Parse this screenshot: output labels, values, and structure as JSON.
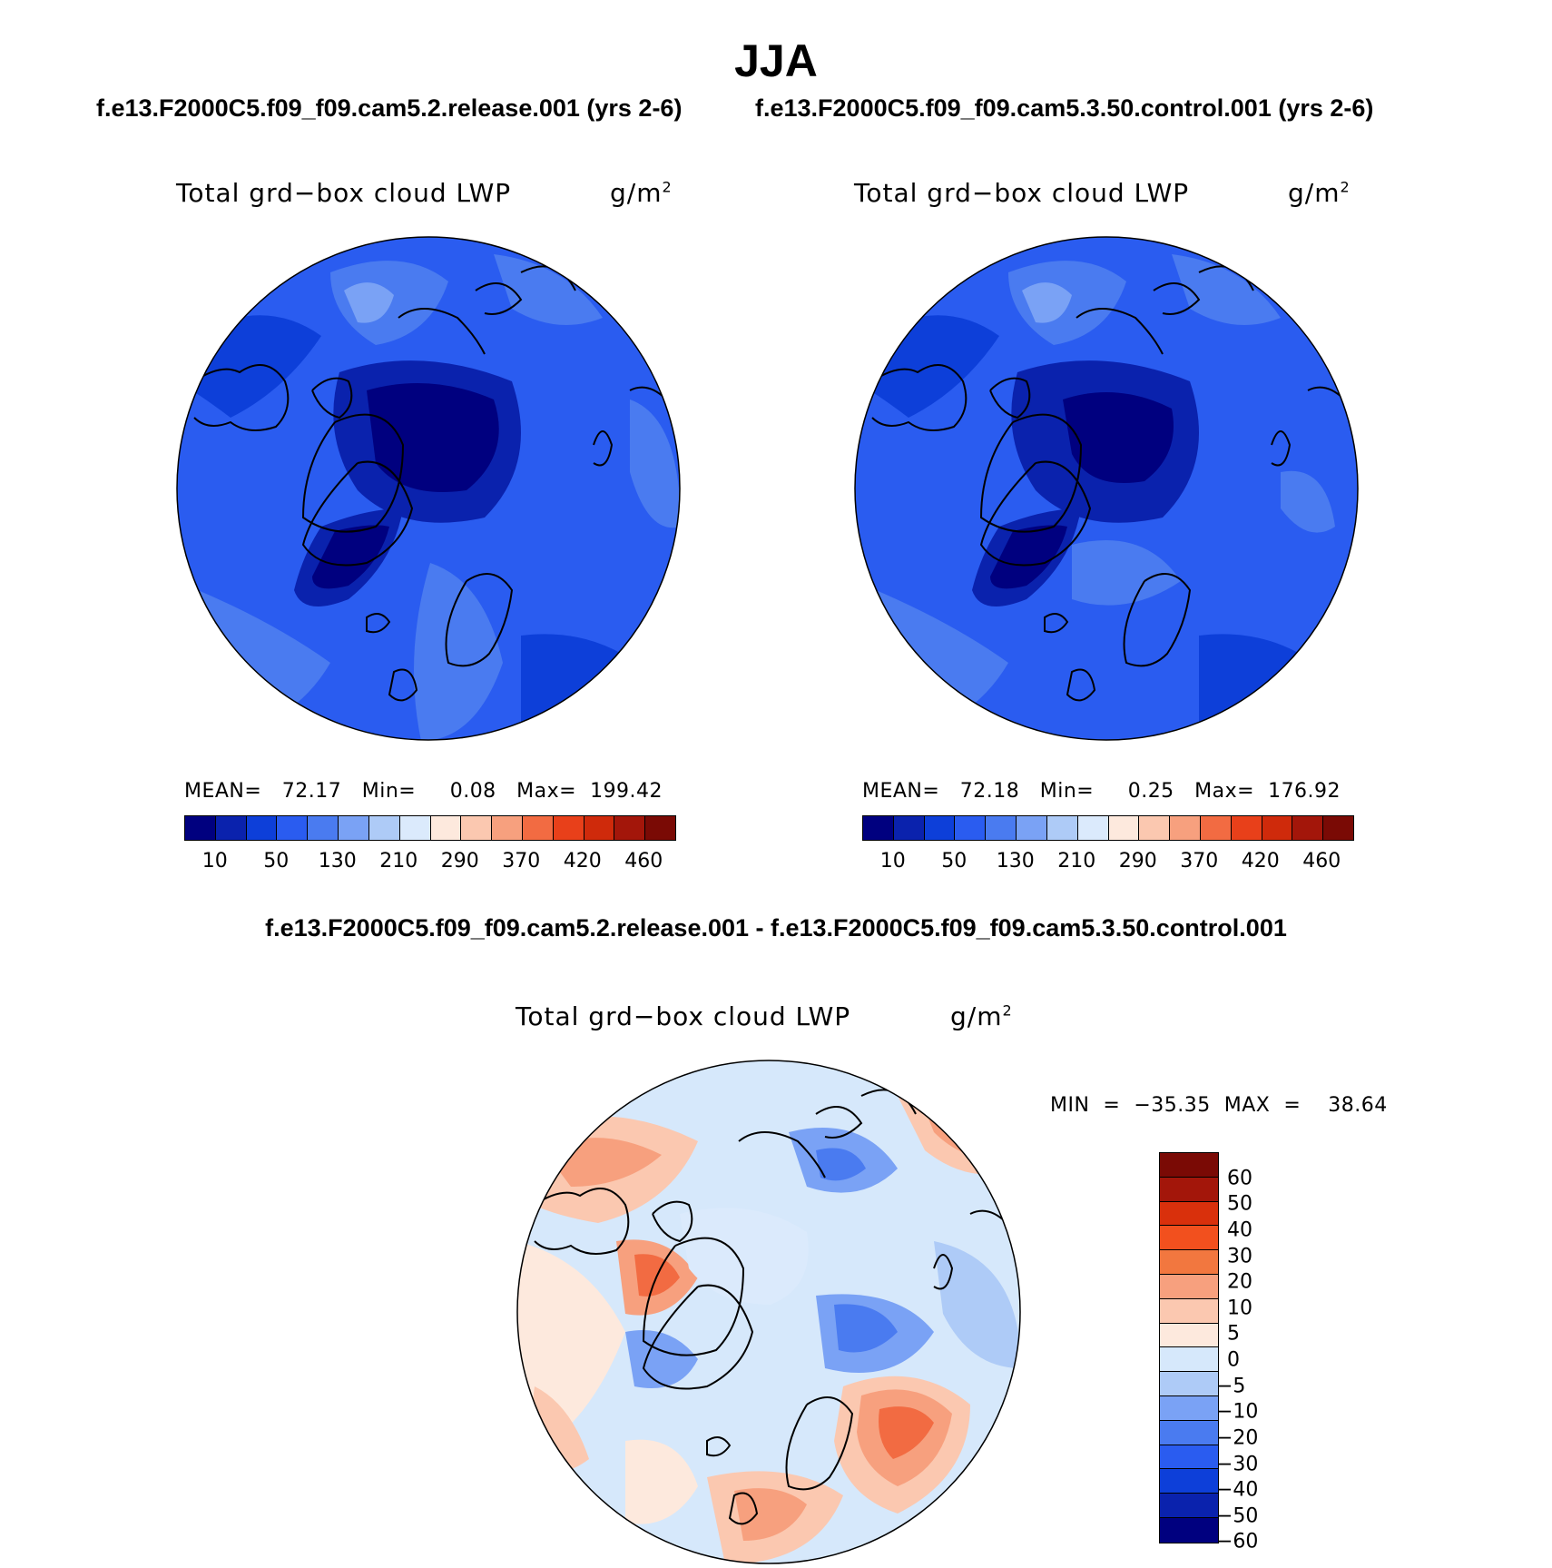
{
  "figure": {
    "title": "JJA",
    "case1_label": "f.e13.F2000C5.f09_f09.cam5.2.release.001 (yrs 2-6)",
    "case2_label": "f.e13.F2000C5.f09_f09.cam5.3.50.control.001 (yrs 2-6)",
    "diff_title": "f.e13.F2000C5.f09_f09.cam5.2.release.001 - f.e13.F2000C5.f09_f09.cam5.3.50.control.001"
  },
  "colors": {
    "abs_palette": [
      "#00007f",
      "#0a22ad",
      "#0d3fd9",
      "#2a5cf0",
      "#4a7bf0",
      "#7aa2f5",
      "#aecbf7",
      "#dbeafc",
      "#fde9dd",
      "#fbc8b0",
      "#f7a07e",
      "#f26b42",
      "#e8401a",
      "#cf2a0b",
      "#a3160a",
      "#7a0a05"
    ],
    "diff_palette": [
      "#00007f",
      "#0a22ad",
      "#0d3fd9",
      "#2a5cf0",
      "#4a7bf0",
      "#7aa2f5",
      "#aecbf7",
      "#d6e8fb",
      "#fde9dd",
      "#fbc8b0",
      "#f7a07e",
      "#f2773f",
      "#f2501e",
      "#d9300c",
      "#a3160a",
      "#7a0a05"
    ],
    "ocean_abs_deep": "#0a22ad",
    "ocean_abs_mid": "#2a5cf0",
    "ocean_abs_light": "#4a7bf0"
  },
  "chart_data": [
    {
      "type": "map",
      "projection": "north-polar-stereographic",
      "panel": "left",
      "case": "f.e13.F2000C5.f09_f09.cam5.2.release.001 (yrs 2-6)",
      "variable_label": "Total grd−box cloud LWP",
      "units_base": "g/m",
      "units_exp": "2",
      "stats": "MEAN=   72.17   Min=     0.08   Max=  199.42",
      "colorbar_ticks": [
        "10",
        "50",
        "130",
        "210",
        "290",
        "370",
        "420",
        "460"
      ]
    },
    {
      "type": "map",
      "projection": "north-polar-stereographic",
      "panel": "right",
      "case": "f.e13.F2000C5.f09_f09.cam5.3.50.control.001 (yrs 2-6)",
      "variable_label": "Total grd−box cloud LWP",
      "units_base": "g/m",
      "units_exp": "2",
      "stats": "MEAN=   72.18   Min=     0.25   Max=  176.92",
      "colorbar_ticks": [
        "10",
        "50",
        "130",
        "210",
        "290",
        "370",
        "420",
        "460"
      ]
    },
    {
      "type": "map",
      "projection": "north-polar-stereographic",
      "panel": "difference",
      "variable_label": "Total grd−box cloud LWP",
      "units_base": "g/m",
      "units_exp": "2",
      "minmax": "MIN  =  −35.35  MAX  =    38.64",
      "colorbar_ticks": [
        "60",
        "50",
        "40",
        "30",
        "20",
        "10",
        "5",
        "0",
        "−5",
        "−10",
        "−20",
        "−30",
        "−40",
        "−50",
        "−60"
      ]
    }
  ]
}
